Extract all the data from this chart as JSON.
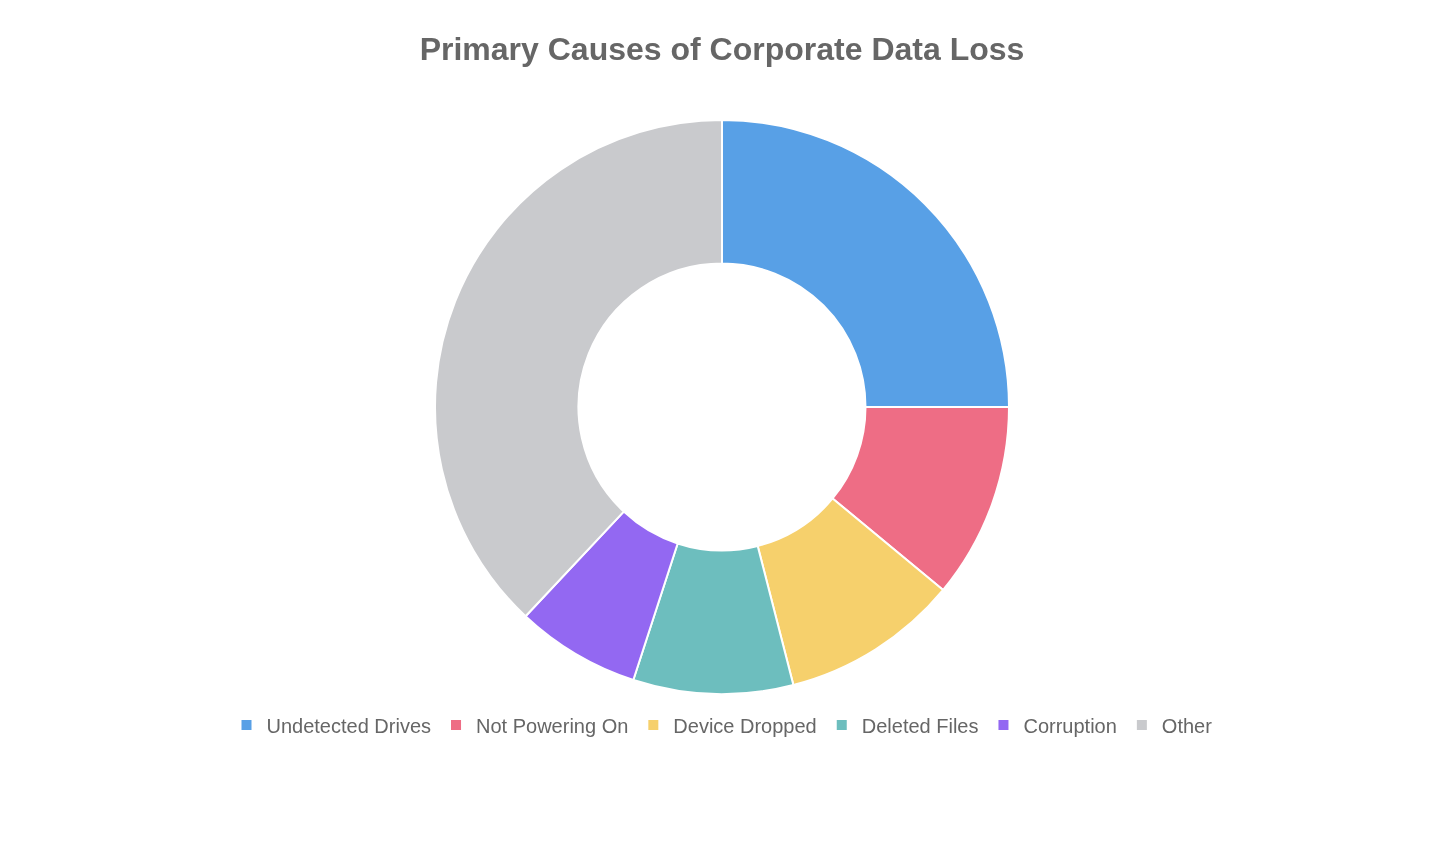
{
  "chart_data": {
    "type": "donut",
    "title": "Primary Causes of Corporate Data Loss",
    "categories": [
      "Undetected Drives",
      "Not Powering On",
      "Device Dropped",
      "Deleted Files",
      "Corruption",
      "Other"
    ],
    "values": [
      25,
      11,
      10,
      9,
      7,
      38
    ],
    "colors": [
      "#58a0e6",
      "#ee6d85",
      "#f6d06c",
      "#6dbebe",
      "#9368f2",
      "#c9cacd"
    ],
    "legend": "bottom"
  }
}
